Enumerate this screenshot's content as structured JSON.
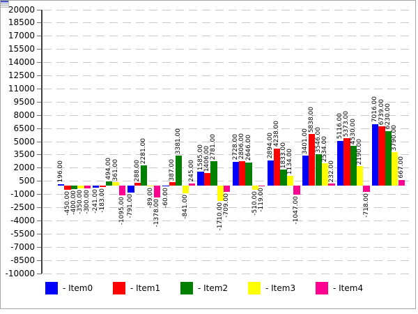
{
  "window": {
    "icon": "window-form-icon",
    "background": "#ffffff",
    "frame_color": "#a6a6a6"
  },
  "chart_data": {
    "type": "bar",
    "title": "",
    "xlabel": "",
    "ylabel": "",
    "group_count": 10,
    "categories": [
      "",
      "",
      "",
      "",
      "",
      "",
      "",
      "",
      "",
      ""
    ],
    "y_axis": {
      "min": -10000,
      "max": 20000,
      "tick_step": 1500,
      "tick_labels": [
        "20000",
        "18500",
        "17000",
        "15500",
        "14000",
        "12500",
        "11000",
        "9500",
        "8000",
        "6500",
        "5000",
        "3500",
        "2000",
        "500",
        "-1000",
        "-2500",
        "-4000",
        "-5500",
        "-7000",
        "-8500",
        "-10000"
      ]
    },
    "grid": "dashed-horizontal",
    "value_label_format": "0.00",
    "series": [
      {
        "name": "Item0",
        "color": "#0000ff",
        "values": [
          196,
          -241,
          -791,
          -60,
          1585,
          2728,
          2894,
          3401,
          5116,
          7016
        ]
      },
      {
        "name": "Item1",
        "color": "#ff0000",
        "values": [
          -450,
          -183,
          288,
          387,
          1406,
          2806,
          4238,
          5838,
          5373,
          6739
        ]
      },
      {
        "name": "Item2",
        "color": "#008000",
        "values": [
          -400,
          494,
          2281,
          3381,
          2781,
          2646,
          1833,
          3546,
          4530,
          6230
        ]
      },
      {
        "name": "Item3",
        "color": "#ffff00",
        "values": [
          -350,
          361,
          -89,
          -841,
          -1710,
          -510,
          1134,
          2534,
          2190,
          3790
        ]
      },
      {
        "name": "Item4",
        "color": "#ff0090",
        "values": [
          -300,
          -1095,
          -1378,
          245,
          -709,
          -119,
          -1047,
          232,
          -718,
          667
        ]
      }
    ],
    "legend": {
      "position": "bottom",
      "prefix": "-",
      "entries": [
        "Item0",
        "Item1",
        "Item2",
        "Item3",
        "Item4"
      ]
    }
  }
}
